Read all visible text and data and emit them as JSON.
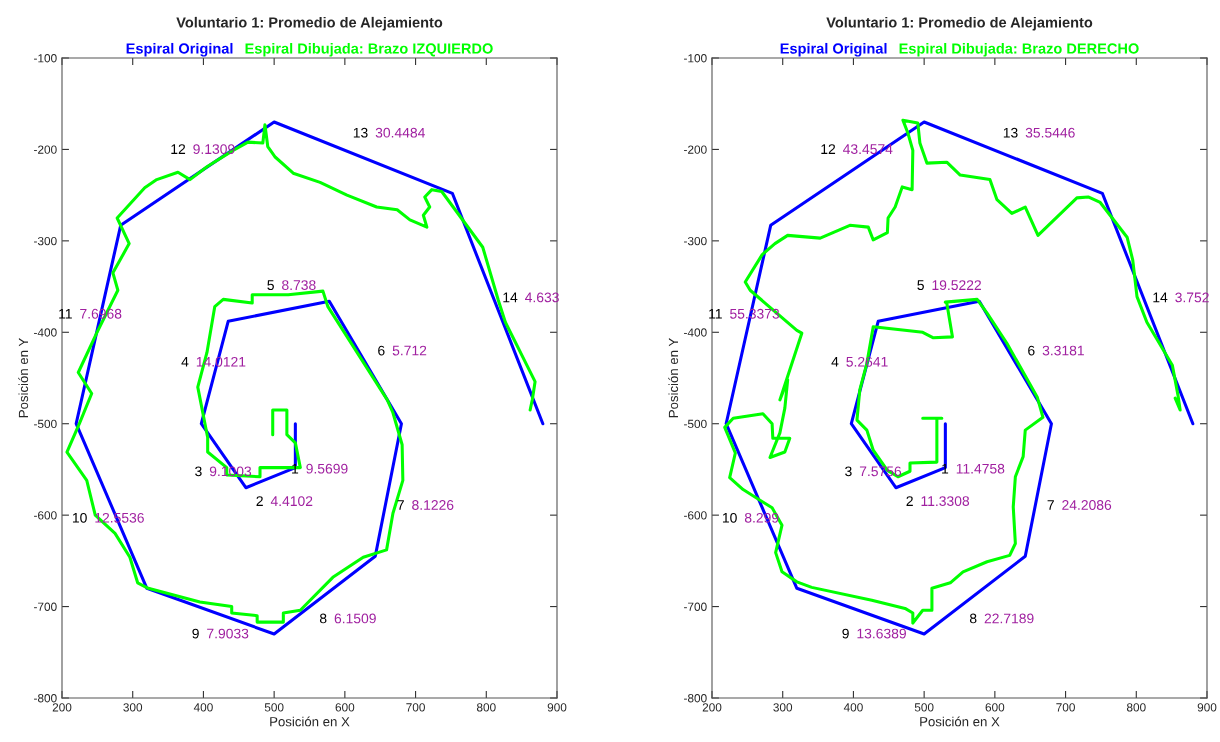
{
  "chart_data": [
    {
      "type": "line",
      "title": "Voluntario 1: Promedio de Alejamiento",
      "xlabel": "Posición en X",
      "ylabel": "Posición en Y",
      "xlim": [
        200,
        900
      ],
      "ylim": [
        -800,
        -100
      ],
      "xticks": [
        200,
        300,
        400,
        500,
        600,
        700,
        800,
        900
      ],
      "yticks": [
        -800,
        -700,
        -600,
        -500,
        -400,
        -300,
        -200,
        -100
      ],
      "grid": false,
      "legend": "top",
      "series": [
        {
          "name": "Espiral Original",
          "color": "#0000ff",
          "x": [
            530,
            530,
            460,
            397,
            435,
            578,
            680,
            643,
            500,
            320,
            220,
            283,
            500,
            752,
            880
          ],
          "values": [
            -500,
            -548,
            -570,
            -500,
            -388,
            -366,
            -500,
            -645,
            -730,
            -680,
            -500,
            -283,
            -170,
            -248,
            -500
          ]
        },
        {
          "name": "Espiral Dibujada: Brazo IZQUIERDO",
          "color": "#00ff00",
          "x": [
            498,
            498,
            518,
            518,
            530,
            537,
            480,
            480,
            433,
            433,
            406,
            406,
            392,
            405,
            416,
            428,
            469,
            469,
            520,
            569,
            576,
            660,
            668,
            681,
            682,
            668,
            659,
            626,
            583,
            537,
            513,
            513,
            476,
            476,
            440,
            440,
            395,
            322,
            307,
            296,
            275,
            247,
            235,
            207,
            225,
            242,
            223,
            249,
            279,
            272,
            295,
            278,
            317,
            334,
            364,
            381,
            405,
            442,
            463,
            484,
            487,
            491,
            501,
            527,
            565,
            603,
            645,
            674,
            692,
            716,
            711,
            720,
            713,
            723,
            737,
            795,
            817,
            827,
            869,
            865,
            862
          ],
          "values": [
            -512,
            -485,
            -485,
            -512,
            -521,
            -548,
            -548,
            -558,
            -556,
            -548,
            -531,
            -515,
            -460,
            -422,
            -372,
            -364,
            -368,
            -359,
            -359,
            -355,
            -372,
            -474,
            -488,
            -523,
            -562,
            -598,
            -638,
            -646,
            -668,
            -704,
            -707,
            -717,
            -717,
            -710,
            -707,
            -700,
            -695,
            -680,
            -674,
            -646,
            -620,
            -600,
            -562,
            -531,
            -499,
            -467,
            -444,
            -401,
            -354,
            -335,
            -303,
            -275,
            -242,
            -233,
            -225,
            -233,
            -219,
            -201,
            -192,
            -193,
            -173,
            -197,
            -208,
            -226,
            -236,
            -250,
            -263,
            -266,
            -277,
            -285,
            -272,
            -263,
            -252,
            -244,
            -246,
            -307,
            -365,
            -389,
            -454,
            -474,
            -485
          ]
        }
      ],
      "annotations": [
        "1",
        "9.5699",
        "2",
        "4.4102",
        "3",
        "9.1003",
        "4",
        "14.0121",
        "5",
        "8.738",
        "6",
        "5.712",
        "7",
        "8.1226",
        "8",
        "6.1509",
        "9",
        "7.9033",
        "10",
        "12.5536",
        "11",
        "7.6968",
        "12",
        "9.1309",
        "13",
        "30.4484",
        "14",
        "4.633"
      ]
    },
    {
      "type": "line",
      "title": "Voluntario 1: Promedio de Alejamiento",
      "xlabel": "Posición en X",
      "ylabel": "Posición en Y",
      "xlim": [
        200,
        900
      ],
      "ylim": [
        -800,
        -100
      ],
      "xticks": [
        200,
        300,
        400,
        500,
        600,
        700,
        800,
        900
      ],
      "yticks": [
        -800,
        -700,
        -600,
        -500,
        -400,
        -300,
        -200,
        -100
      ],
      "grid": false,
      "legend": "top",
      "series": [
        {
          "name": "Espiral Original",
          "color": "#0000ff",
          "x": [
            530,
            530,
            460,
            397,
            435,
            578,
            680,
            643,
            500,
            320,
            220,
            283,
            500,
            752,
            880
          ],
          "values": [
            -500,
            -548,
            -570,
            -500,
            -388,
            -366,
            -500,
            -645,
            -730,
            -680,
            -500,
            -283,
            -170,
            -248,
            -500
          ]
        },
        {
          "name": "Espiral Dibujada: Brazo DERECHO",
          "color": "#00ff00",
          "x": [
            498,
            525,
            518,
            518,
            480,
            480,
            463,
            448,
            428,
            419,
            405,
            409,
            419,
            428,
            498,
            513,
            540,
            532,
            530,
            575,
            589,
            617,
            660,
            668,
            643,
            640,
            629,
            626,
            629,
            621,
            589,
            555,
            537,
            511,
            511,
            498,
            484,
            484,
            473,
            426,
            341,
            320,
            299,
            290,
            299,
            285,
            244,
            225,
            233,
            218,
            230,
            272,
            285,
            286,
            310,
            303,
            282,
            296,
            303,
            307,
            296,
            327,
            320,
            254,
            247,
            271,
            289,
            307,
            353,
            395,
            421,
            428,
            448,
            449,
            459,
            469,
            483,
            484,
            477,
            470,
            491,
            494,
            504,
            532,
            551,
            593,
            603,
            624,
            643,
            661,
            716,
            732,
            749,
            787,
            795,
            801,
            815,
            851,
            859,
            862,
            855
          ],
          "values": [
            -494,
            -494,
            -494,
            -542,
            -543,
            -552,
            -558,
            -551,
            -529,
            -507,
            -496,
            -463,
            -434,
            -394,
            -400,
            -406,
            -405,
            -368,
            -367,
            -364,
            -379,
            -412,
            -471,
            -493,
            -507,
            -536,
            -558,
            -591,
            -631,
            -644,
            -651,
            -662,
            -674,
            -680,
            -704,
            -704,
            -718,
            -707,
            -702,
            -693,
            -679,
            -673,
            -662,
            -641,
            -611,
            -592,
            -572,
            -559,
            -532,
            -504,
            -494,
            -489,
            -500,
            -516,
            -516,
            -531,
            -537,
            -510,
            -483,
            -452,
            -474,
            -401,
            -398,
            -354,
            -345,
            -315,
            -303,
            -294,
            -297,
            -283,
            -285,
            -299,
            -291,
            -275,
            -263,
            -241,
            -244,
            -201,
            -182,
            -168,
            -171,
            -193,
            -215,
            -214,
            -228,
            -233,
            -255,
            -270,
            -263,
            -294,
            -253,
            -252,
            -258,
            -296,
            -321,
            -361,
            -389,
            -436,
            -469,
            -485,
            -472
          ]
        }
      ],
      "annotations": [
        "1",
        "11.4758",
        "2",
        "11.3308",
        "3",
        "7.5756",
        "4",
        "5.2641",
        "5",
        "19.5222",
        "6",
        "3.3181",
        "7",
        "24.2086",
        "8",
        "22.7189",
        "9",
        "13.6389",
        "10",
        "8.299",
        "11",
        "55.3373",
        "12",
        "43.4574",
        "13",
        "35.5446",
        "14",
        "3.752"
      ]
    }
  ]
}
